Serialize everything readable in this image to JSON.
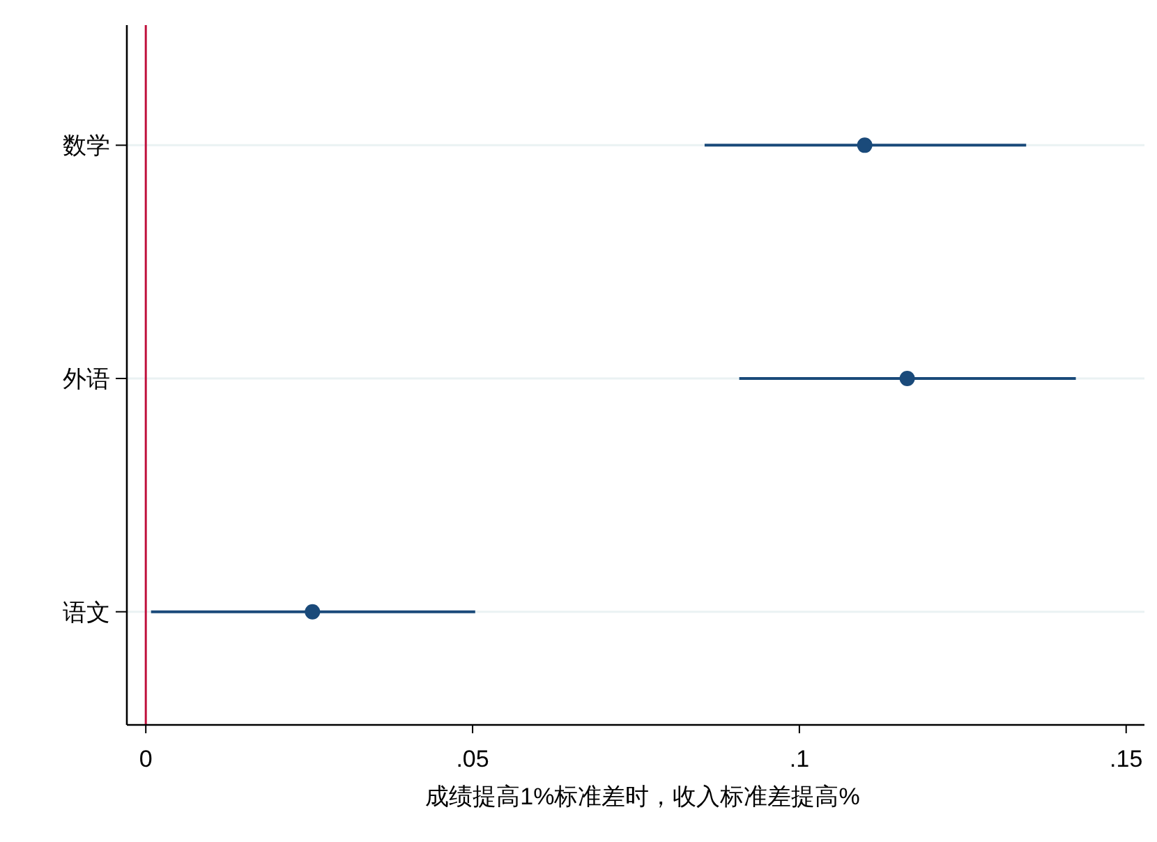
{
  "chart_data": {
    "type": "scatter",
    "orientation": "horizontal",
    "xlabel": "成绩提高1%标准差时，收入标准差提高%",
    "categories": [
      "数学",
      "外语",
      "语文"
    ],
    "color": "#1a4a7a",
    "values": [
      0.11,
      0.1165,
      0.0255
    ],
    "errors": [
      [
        0.0855,
        0.1347
      ],
      [
        0.0908,
        0.1423
      ],
      [
        0.0008,
        0.0504
      ]
    ],
    "xlim": [
      -0.0029,
      0.1528
    ],
    "xticks": [
      {
        "value": 0,
        "label": "0"
      },
      {
        "value": 0.05,
        "label": ".05"
      },
      {
        "value": 0.1,
        "label": ".1"
      },
      {
        "value": 0.15,
        "label": ".15"
      }
    ],
    "ref_lines": [
      {
        "axis": "x",
        "value": 0,
        "color": "#c0103c"
      }
    ],
    "grid": "y",
    "marker": "circle"
  }
}
